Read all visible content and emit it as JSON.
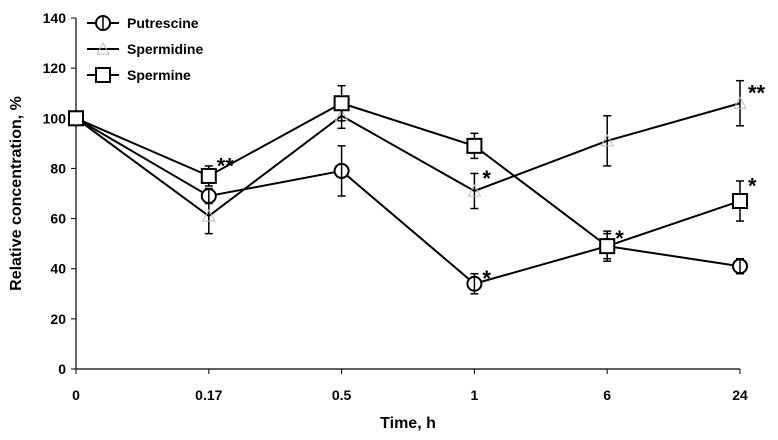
{
  "chart_data": {
    "type": "line",
    "title": "",
    "xlabel": "Time, h",
    "ylabel": "Relative concentration, %",
    "categories": [
      "0",
      "0.17",
      "0.5",
      "1",
      "6",
      "24"
    ],
    "ylim": [
      0,
      140
    ],
    "yticks": [
      0,
      20,
      40,
      60,
      80,
      100,
      120,
      140
    ],
    "grid": false,
    "legend_position": "top-left",
    "series": [
      {
        "name": "Putrescine",
        "marker": "circle",
        "color": "#000000",
        "values": [
          100,
          69,
          79,
          34,
          49,
          41
        ],
        "errors": [
          0,
          3,
          10,
          4,
          6,
          3
        ]
      },
      {
        "name": "Spermidine",
        "marker": "triangle",
        "color": "#000000",
        "values": [
          100,
          61,
          101,
          71,
          91,
          106
        ],
        "errors": [
          0,
          7,
          5,
          7,
          10,
          9
        ]
      },
      {
        "name": "Spermine",
        "marker": "square",
        "color": "#000000",
        "values": [
          100,
          77,
          106,
          89,
          49,
          67
        ],
        "errors": [
          0,
          4,
          7,
          5,
          5,
          8
        ]
      }
    ],
    "annotations": [
      {
        "category": "0.17",
        "value": 82,
        "text": "**"
      },
      {
        "category": "1",
        "value": 77,
        "text": "*"
      },
      {
        "category": "1",
        "value": 37,
        "text": "*"
      },
      {
        "category": "6",
        "value": 53,
        "text": "*"
      },
      {
        "category": "24",
        "value": 111,
        "text": "**"
      },
      {
        "category": "24",
        "value": 74,
        "text": "*"
      }
    ]
  }
}
